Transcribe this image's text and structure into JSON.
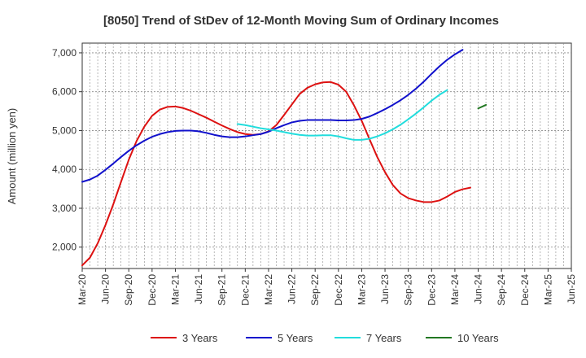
{
  "chart_data": {
    "type": "line",
    "title": "[8050]  Trend of StDev of 12-Month Moving Sum of Ordinary Incomes",
    "xlabel": "",
    "ylabel": "Amount (million yen)",
    "ylim": [
      1450,
      7250
    ],
    "yticks": [
      2000,
      3000,
      4000,
      5000,
      6000,
      7000
    ],
    "ytick_labels": [
      "2,000",
      "3,000",
      "4,000",
      "5,000",
      "6,000",
      "7,000"
    ],
    "x_tick_labels": [
      "Mar-20",
      "Jun-20",
      "Sep-20",
      "Dec-20",
      "Mar-21",
      "Jun-21",
      "Sep-21",
      "Dec-21",
      "Mar-22",
      "Jun-22",
      "Sep-22",
      "Dec-22",
      "Mar-23",
      "Jun-23",
      "Sep-23",
      "Dec-23",
      "Mar-24",
      "Jun-24",
      "Sep-24",
      "Dec-24",
      "Mar-25",
      "Jun-25"
    ],
    "grid": true,
    "legend_position": "bottom",
    "series": [
      {
        "name": "3 Years",
        "color": "#dd1111",
        "start_index": 0,
        "values": [
          1530,
          1730,
          2100,
          2570,
          3100,
          3680,
          4250,
          4730,
          5100,
          5380,
          5540,
          5610,
          5620,
          5580,
          5510,
          5420,
          5330,
          5230,
          5130,
          5040,
          4960,
          4910,
          4890,
          4910,
          4980,
          5140,
          5400,
          5670,
          5940,
          6100,
          6190,
          6240,
          6250,
          6180,
          6000,
          5650,
          5250,
          4780,
          4320,
          3930,
          3600,
          3380,
          3260,
          3200,
          3160,
          3160,
          3200,
          3300,
          3420,
          3490,
          3530
        ]
      },
      {
        "name": "5 Years",
        "color": "#1111cc",
        "start_index": 0,
        "values": [
          3680,
          3740,
          3840,
          3990,
          4150,
          4320,
          4480,
          4620,
          4740,
          4840,
          4910,
          4960,
          4990,
          5000,
          5000,
          4980,
          4940,
          4890,
          4850,
          4830,
          4830,
          4850,
          4880,
          4910,
          4970,
          5060,
          5140,
          5210,
          5250,
          5270,
          5270,
          5270,
          5270,
          5260,
          5260,
          5270,
          5300,
          5360,
          5450,
          5550,
          5660,
          5780,
          5920,
          6080,
          6260,
          6460,
          6650,
          6820,
          6960,
          7080
        ]
      },
      {
        "name": "7 Years",
        "color": "#22dddd",
        "start_index": 20,
        "values": [
          5170,
          5140,
          5100,
          5060,
          5030,
          5000,
          4960,
          4920,
          4890,
          4870,
          4870,
          4880,
          4880,
          4850,
          4800,
          4760,
          4760,
          4790,
          4850,
          4930,
          5030,
          5150,
          5290,
          5440,
          5600,
          5770,
          5920,
          6040
        ]
      },
      {
        "name": "10 Years",
        "color": "#227722",
        "start_index": 51,
        "values": [
          5570,
          5660
        ]
      }
    ]
  }
}
